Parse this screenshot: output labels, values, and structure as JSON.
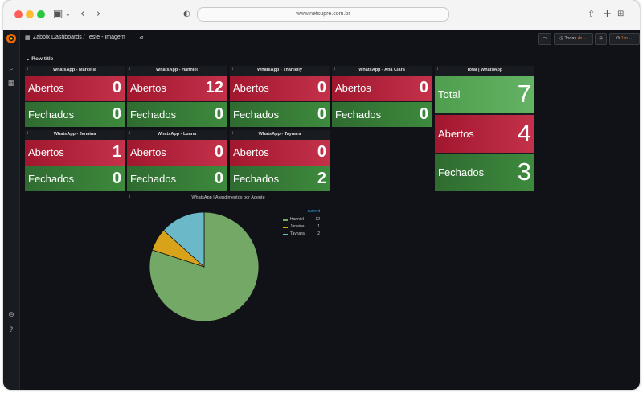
{
  "browser": {
    "url": "www.netsupre.com.br"
  },
  "header": {
    "breadcrumb": "Zabbix Dashboards / Teste - Imagem",
    "time_range": "Today",
    "time_badge": "4s",
    "refresh_interval": "1m"
  },
  "row": {
    "title": "Row title"
  },
  "panels": [
    {
      "title": "WhatsApp - Marcella",
      "abertos_label": "Abertos",
      "abertos": "0",
      "fechados_label": "Fechados",
      "fechados": "0"
    },
    {
      "title": "WhatsApp - Hanniel",
      "abertos_label": "Abertos",
      "abertos": "12",
      "fechados_label": "Fechados",
      "fechados": "0"
    },
    {
      "title": "WhatsApp - Thanielly",
      "abertos_label": "Abertos",
      "abertos": "0",
      "fechados_label": "Fechados",
      "fechados": "0"
    },
    {
      "title": "WhatsApp - Ana Clara",
      "abertos_label": "Abertos",
      "abertos": "0",
      "fechados_label": "Fechados",
      "fechados": "0"
    },
    {
      "title": "WhatsApp - Janaina",
      "abertos_label": "Abertos",
      "abertos": "1",
      "fechados_label": "Fechados",
      "fechados": "0"
    },
    {
      "title": "WhatsApp - Luana",
      "abertos_label": "Abertos",
      "abertos": "0",
      "fechados_label": "Fechados",
      "fechados": "0"
    },
    {
      "title": "WhatsApp - Taynara",
      "abertos_label": "Abertos",
      "abertos": "0",
      "fechados_label": "Fechados",
      "fechados": "2"
    }
  ],
  "total": {
    "title": "Total | WhatsApp",
    "total_label": "Total",
    "total": "7",
    "abertos_label": "Abertos",
    "abertos": "4",
    "fechados_label": "Fechados",
    "fechados": "3"
  },
  "pie_panel": {
    "title": "WhatsApp | Atendimentos por Agente",
    "legend_header": "current"
  },
  "chart_data": {
    "type": "pie",
    "title": "WhatsApp | Atendimentos por Agente",
    "labels": [
      "Hanniel",
      "Janaina",
      "Taynara"
    ],
    "values": [
      12,
      1,
      2
    ],
    "colors": [
      "#73a867",
      "#d8a31a",
      "#6ab8c8"
    ],
    "legend": "right"
  },
  "colors": {
    "red": "#c4314b",
    "green": "#3d8a3d",
    "background": "#111217"
  }
}
